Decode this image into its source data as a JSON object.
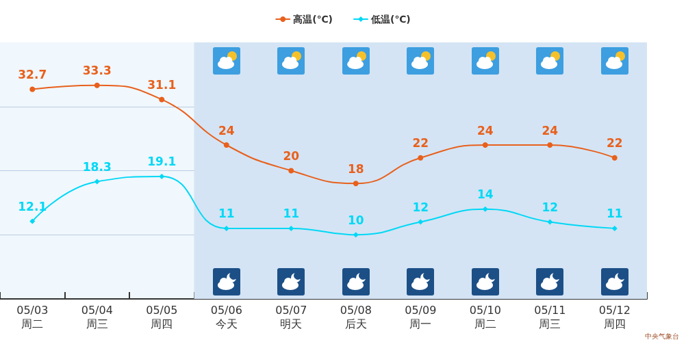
{
  "chart_data": {
    "type": "line",
    "categories": [
      "05/03\n周二",
      "05/04\n周三",
      "05/05\n周四",
      "05/06\n今天",
      "05/07\n明天",
      "05/08\n后天",
      "05/09\n周一",
      "05/10\n周二",
      "05/11\n周三",
      "05/12\n周四"
    ],
    "series": [
      {
        "name": "高温(℃)",
        "color": "#e8601c",
        "marker": "circle",
        "values": [
          32.7,
          33.3,
          31.1,
          24,
          20,
          18,
          22,
          24,
          24,
          22
        ]
      },
      {
        "name": "低温(℃)",
        "color": "#00d8f5",
        "marker": "diamond",
        "values": [
          12.1,
          18.3,
          19.1,
          11,
          11,
          10,
          12,
          14,
          12,
          11
        ]
      }
    ],
    "ylim": [
      0,
      40
    ],
    "yticks": [
      {
        "value": 10,
        "label": null
      },
      {
        "value": 20,
        "label": null
      },
      {
        "value": 30,
        "label": null
      }
    ],
    "tick_labels": "x",
    "grid": "y",
    "legend": "top",
    "data_labels": true,
    "line_style": "solid",
    "bands": [
      {
        "axis": "x",
        "from": "05/06\n今天",
        "to": "05/12\n周四",
        "color": "#d4e4f4"
      }
    ],
    "annotations": [
      "中央气象台"
    ]
  }
}
